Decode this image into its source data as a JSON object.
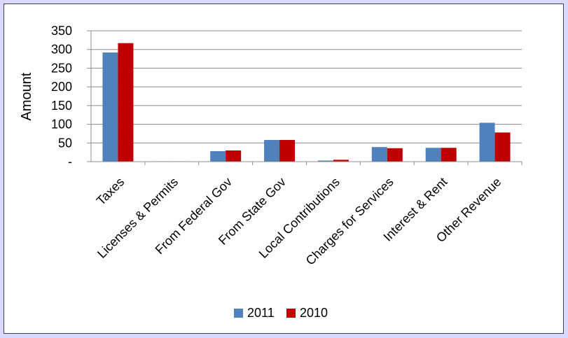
{
  "chart_data": {
    "type": "bar",
    "categories": [
      "Taxes",
      "Licenses & Permits",
      "From Federal Gov",
      "From State Gov",
      "Local Contributions",
      "Charges for Services",
      "Interest & Rent",
      "Other Revenue"
    ],
    "series": [
      {
        "name": "2011",
        "color": "#4f81bd",
        "values": [
          292,
          1,
          28,
          58,
          3,
          39,
          37,
          104
        ]
      },
      {
        "name": "2010",
        "color": "#c00000",
        "values": [
          317,
          1,
          30,
          58,
          5,
          36,
          37,
          78
        ]
      }
    ],
    "ylabel": "Amount",
    "xlabel": "",
    "ylim": [
      0,
      350
    ],
    "yticks": [
      0,
      50,
      100,
      150,
      200,
      250,
      300,
      350
    ],
    "ytick_labels": [
      "-",
      "50",
      "100",
      "150",
      "200",
      "250",
      "300",
      "350"
    ],
    "grid": true,
    "legend": "bottom"
  }
}
